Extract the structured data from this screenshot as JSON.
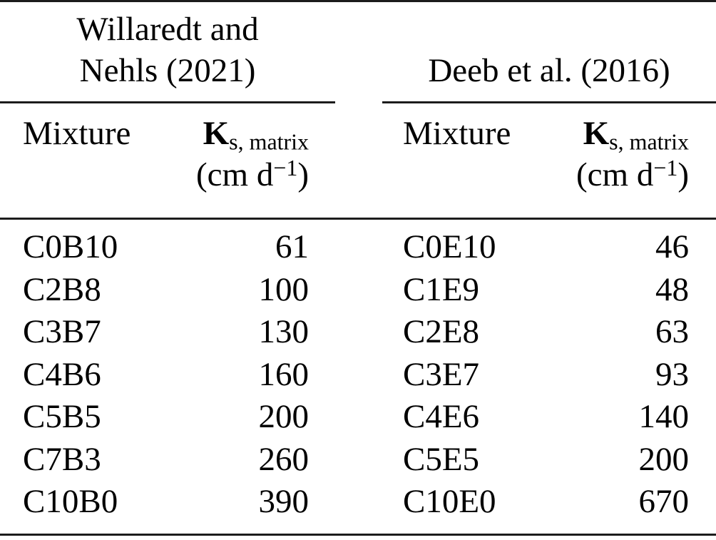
{
  "figure": {
    "background": "#ffffff",
    "text_color": "#000000",
    "rule_color": "#1c1c1c"
  },
  "tables": [
    {
      "group_title_lines": [
        "Willaredt and",
        "Nehls (2021)"
      ],
      "columns": {
        "mixture": "Mixture",
        "k_symbol": "K",
        "k_subscript": "s, matrix",
        "unit_prefix": "(cm d",
        "unit_exponent": "−1",
        "unit_suffix": ")"
      },
      "rows": [
        {
          "mixture": "C0B10",
          "value": "61"
        },
        {
          "mixture": "C2B8",
          "value": "100"
        },
        {
          "mixture": "C3B7",
          "value": "130"
        },
        {
          "mixture": "C4B6",
          "value": "160"
        },
        {
          "mixture": "C5B5",
          "value": "200"
        },
        {
          "mixture": "C7B3",
          "value": "260"
        },
        {
          "mixture": "C10B0",
          "value": "390"
        }
      ]
    },
    {
      "group_title_lines": [
        "Deeb et al. (2016)"
      ],
      "columns": {
        "mixture": "Mixture",
        "k_symbol": "K",
        "k_subscript": "s, matrix",
        "unit_prefix": "(cm d",
        "unit_exponent": "−1",
        "unit_suffix": ")"
      },
      "rows": [
        {
          "mixture": "C0E10",
          "value": "46"
        },
        {
          "mixture": "C1E9",
          "value": "48"
        },
        {
          "mixture": "C2E8",
          "value": "63"
        },
        {
          "mixture": "C3E7",
          "value": "93"
        },
        {
          "mixture": "C4E6",
          "value": "140"
        },
        {
          "mixture": "C5E5",
          "value": "200"
        },
        {
          "mixture": "C10E0",
          "value": "670"
        }
      ]
    }
  ]
}
